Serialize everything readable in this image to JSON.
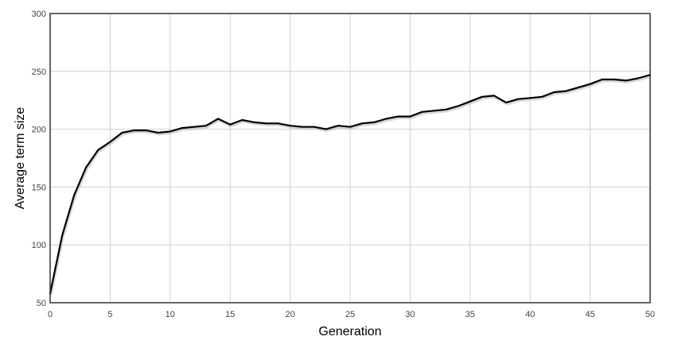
{
  "chart_data": {
    "type": "line",
    "title": "",
    "xlabel": "Generation",
    "ylabel": "Average term size",
    "xlim": [
      0,
      50
    ],
    "ylim": [
      50,
      300
    ],
    "xticks": [
      0,
      5,
      10,
      15,
      20,
      25,
      30,
      35,
      40,
      45,
      50
    ],
    "yticks": [
      50,
      100,
      150,
      200,
      250,
      300
    ],
    "grid": true,
    "series": [
      {
        "color": "#000000",
        "x": [
          0,
          1,
          2,
          3,
          4,
          5,
          6,
          7,
          8,
          9,
          10,
          11,
          12,
          13,
          14,
          15,
          16,
          17,
          18,
          19,
          20,
          21,
          22,
          23,
          24,
          25,
          26,
          27,
          28,
          29,
          30,
          31,
          32,
          33,
          34,
          35,
          36,
          37,
          38,
          39,
          40,
          41,
          42,
          43,
          44,
          45,
          46,
          47,
          48,
          49,
          50
        ],
        "y": [
          58,
          108,
          143,
          167,
          182,
          189,
          197,
          199,
          199,
          197,
          198,
          201,
          202,
          203,
          209,
          204,
          208,
          206,
          205,
          205,
          203,
          202,
          202,
          200,
          203,
          202,
          205,
          206,
          209,
          211,
          211,
          215,
          216,
          217,
          220,
          224,
          228,
          229,
          223,
          226,
          227,
          228,
          232,
          233,
          236,
          239,
          243,
          243,
          242,
          244,
          247
        ]
      }
    ]
  }
}
